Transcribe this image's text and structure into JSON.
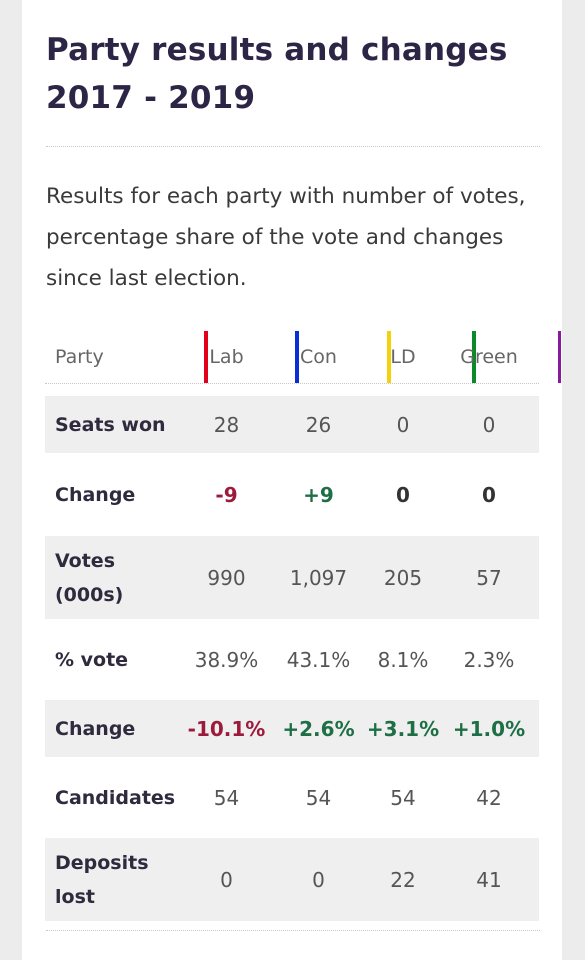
{
  "title_line1": "Party results and changes",
  "title_line2": "2017 - 2019",
  "description": "Results for each party with number of votes, percentage share of the vote and changes since last election.",
  "table": {
    "header": {
      "label": "Party",
      "parties": [
        {
          "name": "Lab",
          "color": "#e2001a"
        },
        {
          "name": "Con",
          "color": "#0a2ed6"
        },
        {
          "name": "LD",
          "color": "#f5d10a"
        },
        {
          "name": "Green",
          "color": "#0b8a2a"
        }
      ],
      "end_color": "#8a1a9c"
    },
    "rows": [
      {
        "label": "Seats won",
        "values": [
          "28",
          "26",
          "0",
          "0"
        ],
        "kind": "plain"
      },
      {
        "label": "Change",
        "values": [
          "-9",
          "+9",
          "0",
          "0"
        ],
        "kind": "change"
      },
      {
        "label_line1": "Votes",
        "label_line2": "(000s)",
        "values": [
          "990",
          "1,097",
          "205",
          "57"
        ],
        "kind": "plain"
      },
      {
        "label": "% vote",
        "values": [
          "38.9%",
          "43.1%",
          "8.1%",
          "2.3%"
        ],
        "kind": "plain"
      },
      {
        "label": "Change",
        "values": [
          "-10.1%",
          "+2.6%",
          "+3.1%",
          "+1.0%"
        ],
        "kind": "change"
      },
      {
        "label": "Candidates",
        "values": [
          "54",
          "54",
          "54",
          "42"
        ],
        "kind": "plain"
      },
      {
        "label_line1": "Deposits",
        "label_line2": "lost",
        "values": [
          "0",
          "0",
          "22",
          "41"
        ],
        "kind": "plain"
      }
    ]
  },
  "colors": {
    "negative": "#9c1a3c",
    "positive": "#1e6e46",
    "row_shade": "#efefef"
  }
}
